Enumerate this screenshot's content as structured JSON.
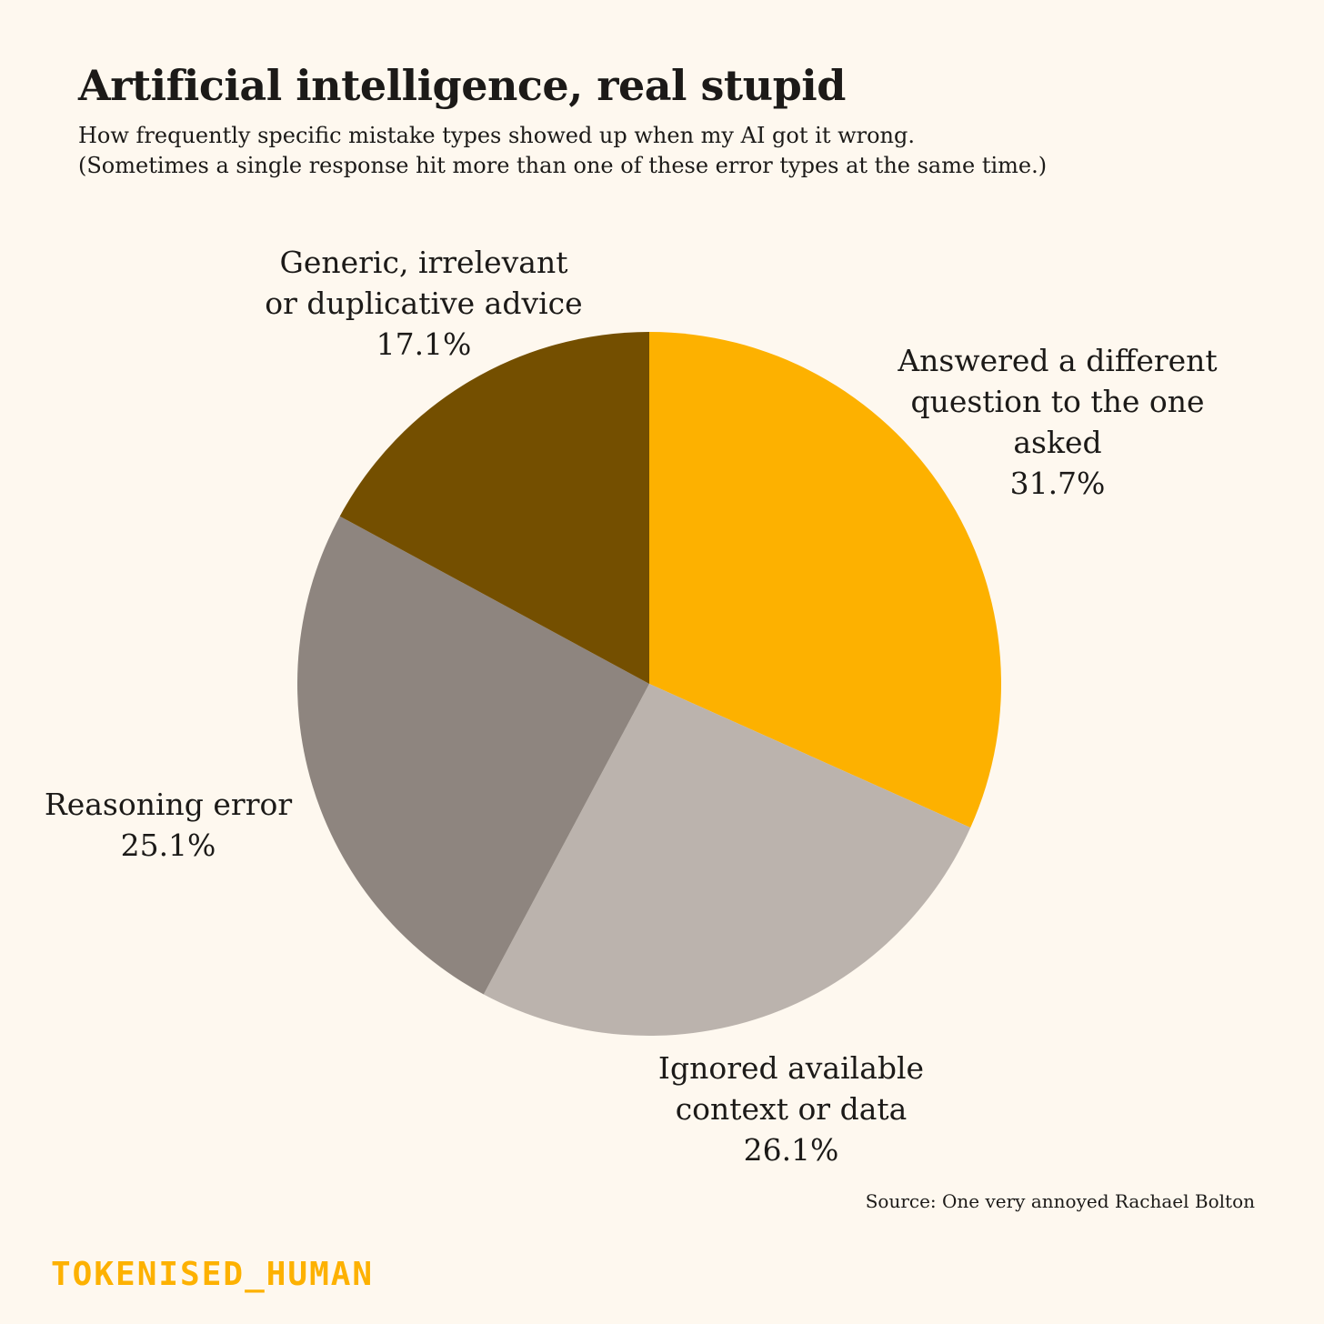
{
  "header": {
    "title": "Artificial intelligence, real stupid",
    "subtitle_lines": [
      "How frequently specific mistake types showed up when my AI got it wrong.",
      "(Sometimes a single response hit more than one of these error types at the same time.)"
    ]
  },
  "chart_data": {
    "type": "pie",
    "title": "Artificial intelligence, real stupid",
    "start": "12 o'clock, clockwise",
    "slices": [
      {
        "label_lines": [
          "Answered a different",
          "question to the one",
          "asked"
        ],
        "value": 31.7,
        "value_label": "31.7%",
        "color": "#fdb100"
      },
      {
        "label_lines": [
          "Ignored available",
          "context or data"
        ],
        "value": 26.1,
        "value_label": "26.1%",
        "color": "#bbb3ad"
      },
      {
        "label_lines": [
          "Reasoning error"
        ],
        "value": 25.1,
        "value_label": "25.1%",
        "color": "#8e857f"
      },
      {
        "label_lines": [
          "Generic, irrelevant",
          "or duplicative advice"
        ],
        "value": 17.1,
        "value_label": "17.1%",
        "color": "#744f00"
      }
    ]
  },
  "footer": {
    "source": "Source: One very annoyed Rachael Bolton",
    "brand": "TOKENISED_HUMAN"
  }
}
